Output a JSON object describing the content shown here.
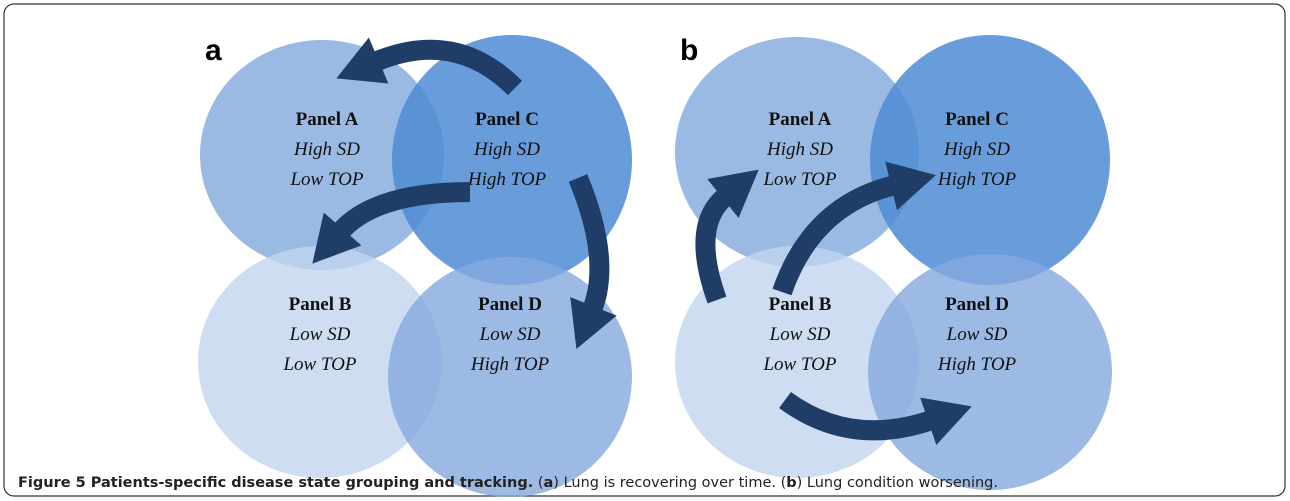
{
  "panels": [
    {
      "letter": "a",
      "circles": [
        {
          "title": "Panel A",
          "line1": "High SD",
          "line2": "Low TOP"
        },
        {
          "title": "Panel C",
          "line1": "High SD",
          "line2": "High TOP"
        },
        {
          "title": "Panel B",
          "line1": "Low SD",
          "line2": "Low TOP"
        },
        {
          "title": "Panel D",
          "line1": "Low SD",
          "line2": "High TOP"
        }
      ]
    },
    {
      "letter": "b",
      "circles": [
        {
          "title": "Panel A",
          "line1": "High SD",
          "line2": "Low TOP"
        },
        {
          "title": "Panel C",
          "line1": "High SD",
          "line2": "High TOP"
        },
        {
          "title": "Panel B",
          "line1": "Low SD",
          "line2": "Low TOP"
        },
        {
          "title": "Panel D",
          "line1": "Low SD",
          "line2": "High TOP"
        }
      ]
    }
  ],
  "caption": {
    "title": "Figure 5 Patients-specific disease state grouping and tracking.",
    "parts": [
      " (",
      "a",
      ") Lung is recovering over time. (",
      "b",
      ") Lung condition worsening."
    ]
  }
}
